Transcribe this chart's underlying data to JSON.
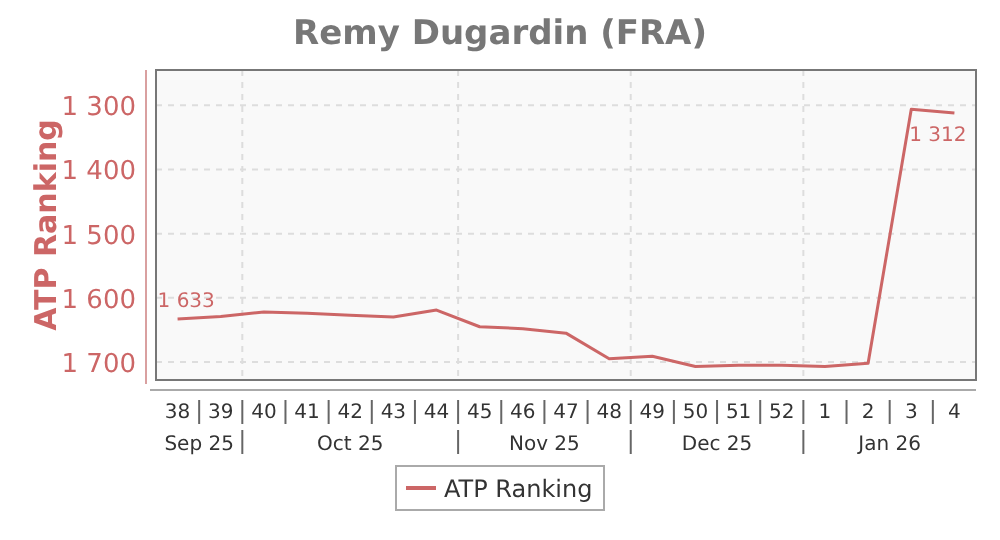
{
  "chart_data": {
    "type": "line",
    "title": "Remy Dugardin (FRA)",
    "ylabel": "ATP Ranking",
    "categories": [
      "38",
      "39",
      "40",
      "41",
      "42",
      "43",
      "44",
      "45",
      "46",
      "47",
      "48",
      "49",
      "50",
      "51",
      "52",
      "1",
      "2",
      "3",
      "4"
    ],
    "series": [
      {
        "name": "ATP Ranking",
        "color": "#cc6666",
        "values": [
          1633,
          1629,
          1622,
          1624,
          1627,
          1630,
          1619,
          1645,
          1648,
          1655,
          1695,
          1691,
          1707,
          1705,
          1705,
          1707,
          1702,
          1306,
          1312
        ],
        "value_labels": [
          "1 633",
          null,
          null,
          null,
          null,
          null,
          null,
          null,
          null,
          null,
          null,
          null,
          null,
          null,
          null,
          null,
          null,
          null,
          "1 312"
        ]
      }
    ],
    "ylim": [
      1728,
      1245
    ],
    "yticks": [
      {
        "value": 1300,
        "label": "1 300"
      },
      {
        "value": 1400,
        "label": "1 400"
      },
      {
        "value": 1500,
        "label": "1 500"
      },
      {
        "value": 1600,
        "label": "1 600"
      },
      {
        "value": 1700,
        "label": "1 700"
      }
    ],
    "annotations": [
      "Sep 25",
      "Oct 25",
      "Nov 25",
      "Dec 25",
      "Jan 26"
    ],
    "grid": true,
    "legend": "bottom",
    "marker": "none",
    "line_style": "solid"
  }
}
